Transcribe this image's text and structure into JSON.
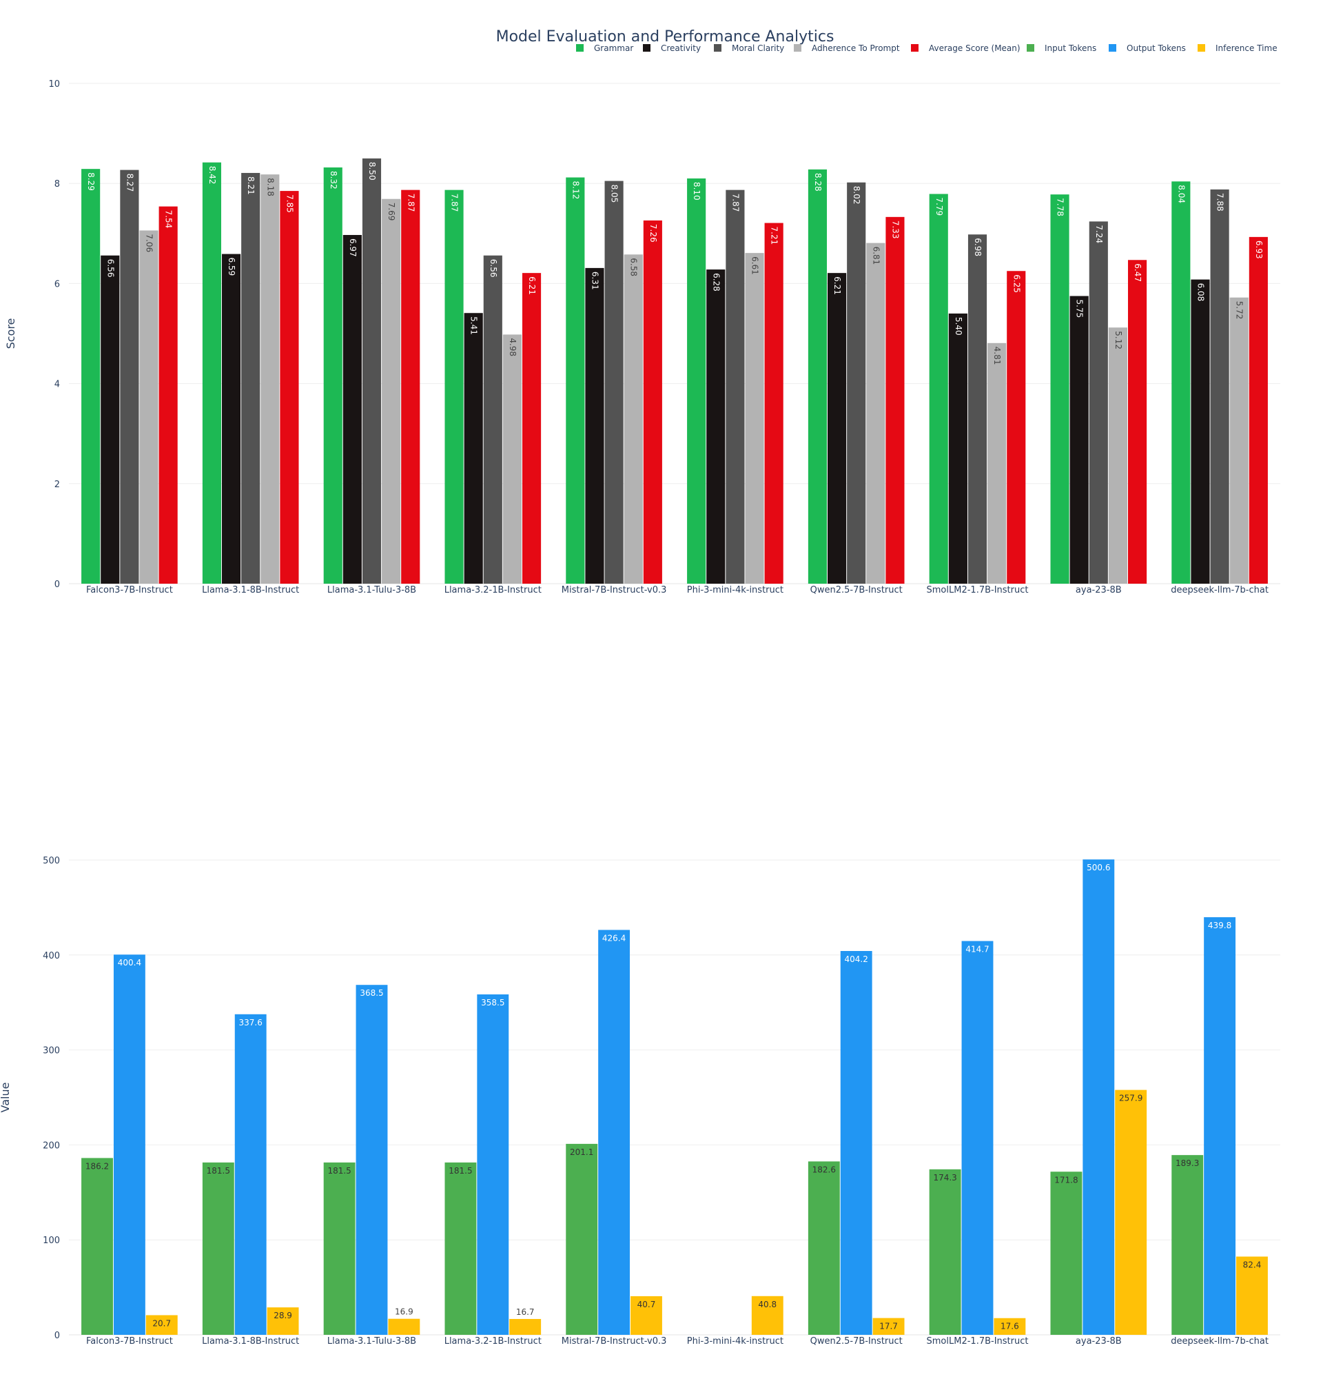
{
  "title": "Model Evaluation and Performance Analytics",
  "legend": [
    {
      "label": "Grammar",
      "color": "#1db954"
    },
    {
      "label": "Creativity",
      "color": "#191414"
    },
    {
      "label": "Moral Clarity",
      "color": "#535353"
    },
    {
      "label": "Adherence To Prompt",
      "color": "#b3b3b3"
    },
    {
      "label": "Average Score (Mean)",
      "color": "#e50914"
    },
    {
      "label": "Input Tokens",
      "color": "#4caf50"
    },
    {
      "label": "Output Tokens",
      "color": "#2196f3"
    },
    {
      "label": "Inference Time",
      "color": "#ffc107"
    }
  ],
  "chart_data": [
    {
      "type": "bar",
      "ylabel": "Score",
      "ylim": [
        0,
        10
      ],
      "yticks": [
        0,
        2,
        4,
        6,
        8,
        10
      ],
      "categories": [
        "Falcon3-7B-Instruct",
        "Llama-3.1-8B-Instruct",
        "Llama-3.1-Tulu-3-8B",
        "Llama-3.2-1B-Instruct",
        "Mistral-7B-Instruct-v0.3",
        "Phi-3-mini-4k-instruct",
        "Qwen2.5-7B-Instruct",
        "SmolLM2-1.7B-Instruct",
        "aya-23-8B",
        "deepseek-llm-7b-chat"
      ],
      "series": [
        {
          "name": "Grammar",
          "color": "#1db954",
          "label_color": "#ffffff",
          "labels": [
            "8.29",
            "8.42",
            "8.32",
            "7.87",
            "8.12",
            "8.10",
            "8.28",
            "7.79",
            "7.78",
            "8.04"
          ],
          "values": [
            8.29,
            8.42,
            8.32,
            7.87,
            8.12,
            8.1,
            8.28,
            7.79,
            7.78,
            8.04
          ]
        },
        {
          "name": "Creativity",
          "color": "#191414",
          "label_color": "#ffffff",
          "labels": [
            "6.56",
            "6.59",
            "6.97",
            "5.41",
            "6.31",
            "6.28",
            "6.21",
            "5.40",
            "5.75",
            "6.08"
          ],
          "values": [
            6.56,
            6.59,
            6.97,
            5.41,
            6.31,
            6.28,
            6.21,
            5.4,
            5.75,
            6.08
          ]
        },
        {
          "name": "Moral Clarity",
          "color": "#535353",
          "label_color": "#ffffff",
          "labels": [
            "8.27",
            "8.21",
            "8.50",
            "6.56",
            "8.05",
            "7.87",
            "8.02",
            "6.98",
            "7.24",
            "7.88"
          ],
          "values": [
            8.27,
            8.21,
            8.5,
            6.56,
            8.05,
            7.87,
            8.02,
            6.98,
            7.24,
            7.88
          ]
        },
        {
          "name": "Adherence To Prompt",
          "color": "#b3b3b3",
          "label_color": "#444444",
          "labels": [
            "7.06",
            "8.18",
            "7.69",
            "4.98",
            "6.58",
            "6.61",
            "6.81",
            "4.81",
            "5.12",
            "5.72"
          ],
          "values": [
            7.06,
            8.18,
            7.69,
            4.98,
            6.58,
            6.61,
            6.81,
            4.81,
            5.12,
            5.72
          ]
        },
        {
          "name": "Average Score (Mean)",
          "color": "#e50914",
          "label_color": "#ffffff",
          "labels": [
            "7.54",
            "7.85",
            "7.87",
            "6.21",
            "7.26",
            "7.21",
            "7.33",
            "6.25",
            "6.47",
            "6.93"
          ],
          "values": [
            7.54,
            7.85,
            7.87,
            6.21,
            7.26,
            7.21,
            7.33,
            6.25,
            6.47,
            6.93
          ]
        }
      ]
    },
    {
      "type": "bar",
      "ylabel": "Value",
      "ylim": [
        0,
        500
      ],
      "yticks": [
        0,
        100,
        200,
        300,
        400,
        500
      ],
      "categories": [
        "Falcon3-7B-Instruct",
        "Llama-3.1-8B-Instruct",
        "Llama-3.1-Tulu-3-8B",
        "Llama-3.2-1B-Instruct",
        "Mistral-7B-Instruct-v0.3",
        "Phi-3-mini-4k-instruct",
        "Qwen2.5-7B-Instruct",
        "SmolLM2-1.7B-Instruct",
        "aya-23-8B",
        "deepseek-llm-7b-chat"
      ],
      "series": [
        {
          "name": "Input Tokens",
          "color": "#4caf50",
          "label_color": "#333333",
          "labels": [
            "186.2",
            "181.5",
            "181.5",
            "181.5",
            "201.1",
            "",
            "182.6",
            "174.3",
            "171.8",
            "189.3"
          ],
          "values": [
            186.2,
            181.5,
            181.5,
            181.5,
            201.1,
            null,
            182.6,
            174.3,
            171.8,
            189.3
          ]
        },
        {
          "name": "Output Tokens",
          "color": "#2196f3",
          "label_color": "#ffffff",
          "labels": [
            "400.4",
            "337.6",
            "368.5",
            "358.5",
            "426.4",
            "",
            "404.2",
            "414.7",
            "500.6",
            "439.8"
          ],
          "values": [
            400.4,
            337.6,
            368.5,
            358.5,
            426.4,
            null,
            404.2,
            414.7,
            500.6,
            439.8
          ]
        },
        {
          "name": "Inference Time",
          "color": "#ffc107",
          "label_color": "#333333",
          "labels": [
            "20.7",
            "28.9",
            "16.9",
            "16.7",
            "40.7",
            "40.8",
            "17.7",
            "17.6",
            "257.9",
            "82.4"
          ],
          "values": [
            20.7,
            28.9,
            16.9,
            16.7,
            40.7,
            40.8,
            17.7,
            17.6,
            257.9,
            82.4
          ]
        }
      ]
    }
  ]
}
